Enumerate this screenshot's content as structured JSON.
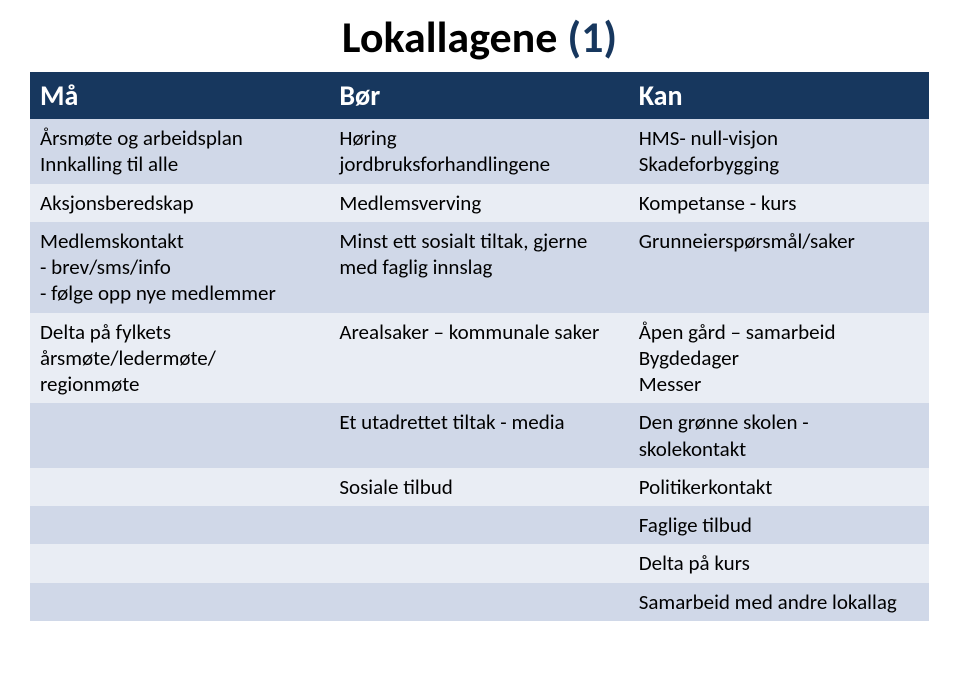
{
  "title": {
    "main": "Lokallagene ",
    "suffix": "(1)",
    "fontsize": 44,
    "color_main": "#000000",
    "color_suffix": "#17375E"
  },
  "table": {
    "header_bg": "#17375E",
    "header_color": "#ffffff",
    "header_fontsize": 28,
    "band_odd": "#D0D8E8",
    "band_even": "#E9EDF4",
    "cell_fontsize": 21,
    "columns": [
      "Må",
      "Bør",
      "Kan"
    ],
    "rows": [
      {
        "band": "odd",
        "cells": [
          "Årsmøte og arbeidsplan\nInnkalling til alle",
          "Høring\njordbruksforhandlingene",
          "HMS- null-visjon\nSkadeforbygging"
        ]
      },
      {
        "band": "even",
        "cells": [
          "Aksjonsberedskap",
          "Medlemsverving",
          "Kompetanse - kurs"
        ]
      },
      {
        "band": "odd",
        "cells": [
          "Medlemskontakt\n- brev/sms/info\n- følge opp nye medlemmer",
          "Minst ett sosialt tiltak, gjerne med faglig innslag",
          "Grunneierspørsmål/saker"
        ]
      },
      {
        "band": "even",
        "cells": [
          "Delta på fylkets årsmøte/ledermøte/\nregionmøte",
          "Arealsaker – kommunale saker",
          "Åpen gård – samarbeid\nBygdedager\nMesser"
        ]
      },
      {
        "band": "odd",
        "cells": [
          "",
          "Et utadrettet tiltak - media",
          "Den grønne skolen -\nskolekontakt"
        ]
      },
      {
        "band": "even",
        "cells": [
          "",
          "Sosiale tilbud",
          "Politikerkontakt"
        ]
      },
      {
        "band": "odd",
        "cells": [
          "",
          "",
          "Faglige tilbud"
        ]
      },
      {
        "band": "even",
        "cells": [
          "",
          "",
          "Delta på kurs"
        ]
      },
      {
        "band": "odd",
        "cells": [
          "",
          "",
          "Samarbeid med andre lokallag"
        ]
      }
    ]
  }
}
